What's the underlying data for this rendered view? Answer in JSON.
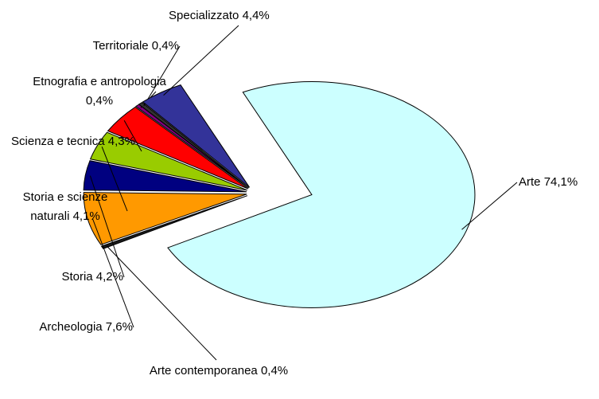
{
  "chart_data": {
    "type": "pie",
    "categories": [
      "Arte",
      "Arte contemporanea",
      "Archeologia",
      "Storia",
      "Storia e scienze naturali",
      "Scienza e tecnica",
      "Etnografia e antropologia",
      "Territoriale",
      "Specializzato"
    ],
    "values": [
      74.1,
      0.4,
      7.6,
      4.2,
      4.1,
      4.3,
      0.4,
      0.4,
      4.4
    ],
    "value_labels": [
      "74,1%",
      "0,4%",
      "7,6%",
      "4,2%",
      "4,1%",
      "4,3%",
      "0,4%",
      "0,4%",
      "4,4%"
    ],
    "colors": [
      "#ccffff",
      "#1a1a1a",
      "#ff9900",
      "#000080",
      "#99cc00",
      "#ff0000",
      "#800080",
      "#333333",
      "#333399"
    ]
  }
}
